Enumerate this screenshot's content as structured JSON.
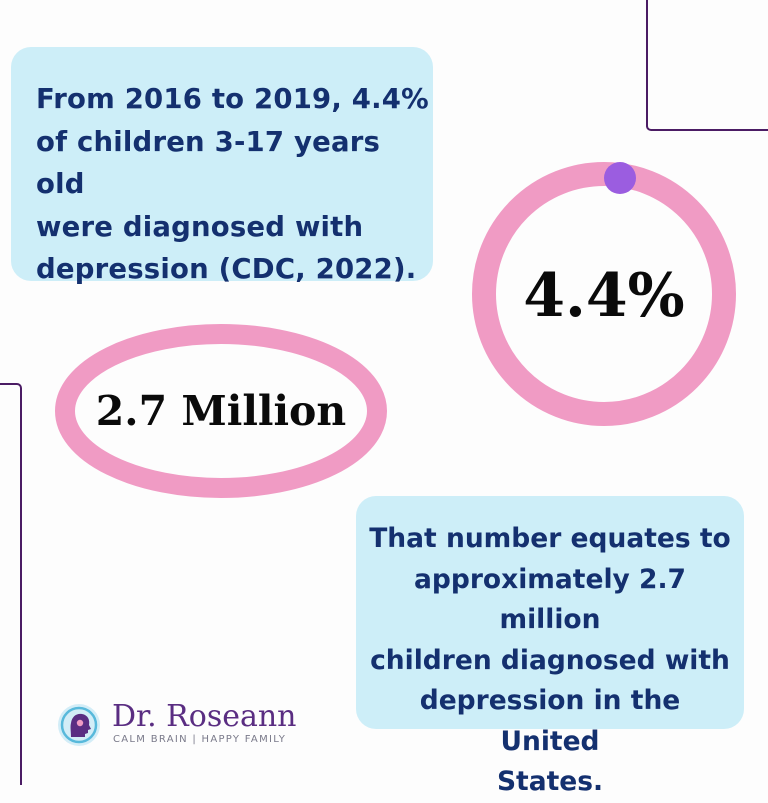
{
  "top_card": {
    "text": "From 2016 to 2019, 4.4%\nof children 3-17 years old\nwere diagnosed with\ndepression (CDC, 2022)."
  },
  "percent_stat": {
    "label": "4.4%",
    "value": 4.4
  },
  "million_stat": {
    "label": "2.7 Million"
  },
  "bottom_card": {
    "text": "That number equates to\napproximately 2.7 million\nchildren diagnosed with\ndepression in the United\nStates."
  },
  "brand": {
    "name": "Dr. Roseann",
    "tagline": "CALM BRAIN | HAPPY FAMILY",
    "icon": "head-silhouette-logo-icon"
  },
  "colors": {
    "background": "#fdfdfd",
    "card": "#cdeef8",
    "card_text": "#14306f",
    "ring": "#f09bc4",
    "ring_marker": "#9b5de0",
    "accent_line": "#4b1c64",
    "brand": "#5a2d82"
  }
}
